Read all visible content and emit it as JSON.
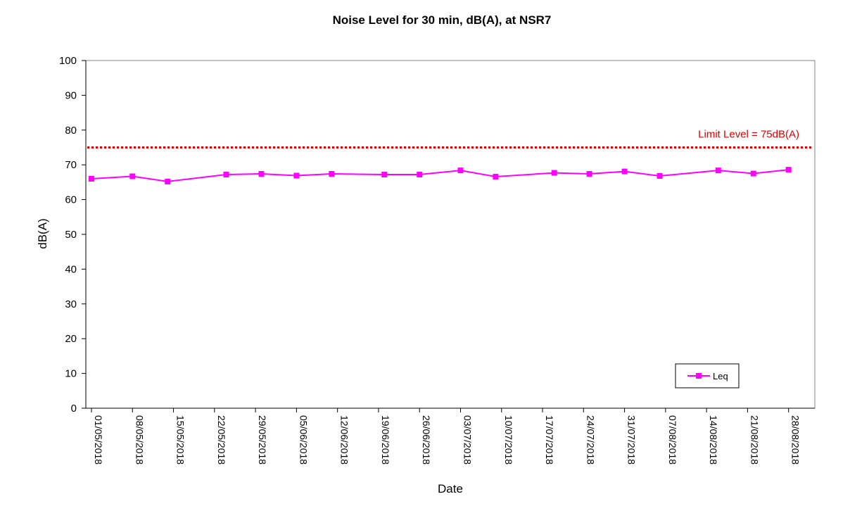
{
  "chart_data": {
    "type": "line",
    "title": "Noise Level for 30 min, dB(A), at NSR7",
    "xlabel": "Date",
    "ylabel": "dB(A)",
    "ylim": [
      0,
      100
    ],
    "y_ticks": [
      0,
      10,
      20,
      30,
      40,
      50,
      60,
      70,
      80,
      90,
      100
    ],
    "x_range": [
      "2018-05-01",
      "2018-09-01"
    ],
    "x_tick_labels": [
      "01/05/2018",
      "08/05/2018",
      "15/05/2018",
      "22/05/2018",
      "29/05/2018",
      "05/06/2018",
      "12/06/2018",
      "19/06/2018",
      "26/06/2018",
      "03/07/2018",
      "10/07/2018",
      "17/07/2018",
      "24/07/2018",
      "31/07/2018",
      "07/08/2018",
      "14/08/2018",
      "21/08/2018",
      "28/08/2018"
    ],
    "grid": false,
    "legend_position": "bottom-right",
    "series": [
      {
        "name": "Leq",
        "color": "#ff00ff",
        "marker": "square",
        "points": [
          {
            "x": "2018-05-01",
            "y": 66.0
          },
          {
            "x": "2018-05-08",
            "y": 66.7
          },
          {
            "x": "2018-05-14",
            "y": 65.2
          },
          {
            "x": "2018-05-24",
            "y": 67.2
          },
          {
            "x": "2018-05-30",
            "y": 67.4
          },
          {
            "x": "2018-06-05",
            "y": 66.9
          },
          {
            "x": "2018-06-11",
            "y": 67.4
          },
          {
            "x": "2018-06-20",
            "y": 67.2
          },
          {
            "x": "2018-06-26",
            "y": 67.2
          },
          {
            "x": "2018-07-03",
            "y": 68.4
          },
          {
            "x": "2018-07-09",
            "y": 66.6
          },
          {
            "x": "2018-07-19",
            "y": 67.7
          },
          {
            "x": "2018-07-25",
            "y": 67.4
          },
          {
            "x": "2018-07-31",
            "y": 68.1
          },
          {
            "x": "2018-08-06",
            "y": 66.8
          },
          {
            "x": "2018-08-16",
            "y": 68.4
          },
          {
            "x": "2018-08-22",
            "y": 67.5
          },
          {
            "x": "2018-08-28",
            "y": 68.6
          }
        ]
      }
    ],
    "reference_lines": [
      {
        "label": "Limit Level = 75dB(A)",
        "y": 75,
        "color": "#dd0000",
        "style": "dotted"
      }
    ]
  }
}
